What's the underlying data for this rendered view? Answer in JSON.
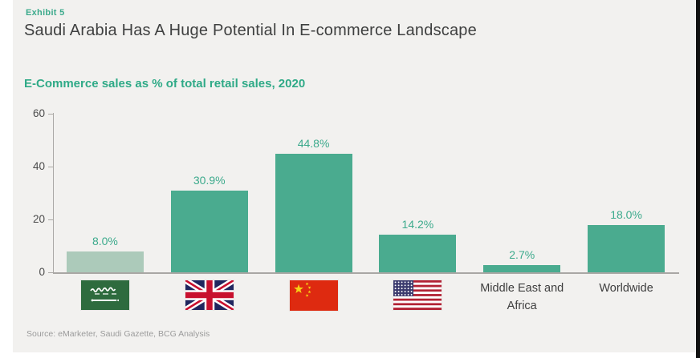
{
  "page": {
    "exhibit_label": "Exhibit 5",
    "title": "Saudi Arabia Has A Huge Potential In E-commerce Landscape",
    "source": "Source: eMarketer, Saudi Gazette, BCG Analysis"
  },
  "chart_data": {
    "type": "bar",
    "title": "E-Commerce sales as % of total retail sales, 2020",
    "categories": [
      "Saudi Arabia",
      "United Kingdom",
      "China",
      "United States",
      "Middle East and Africa",
      "Worldwide"
    ],
    "values": [
      8.0,
      30.9,
      44.8,
      14.2,
      2.7,
      18.0
    ],
    "value_labels": [
      "8.0%",
      "30.9%",
      "44.8%",
      "14.2%",
      "2.7%",
      "18.0%"
    ],
    "category_display": [
      {
        "kind": "flag",
        "icon": "saudi-arabia-flag-icon"
      },
      {
        "kind": "flag",
        "icon": "uk-flag-icon"
      },
      {
        "kind": "flag",
        "icon": "china-flag-icon"
      },
      {
        "kind": "flag",
        "icon": "usa-flag-icon"
      },
      {
        "kind": "text",
        "label": "Middle East and Africa"
      },
      {
        "kind": "text",
        "label": "Worldwide"
      }
    ],
    "ylim": [
      0,
      60
    ],
    "yticks": [
      0,
      20,
      40,
      60
    ],
    "bar_colors": [
      "#accaba",
      "#4aab8f",
      "#4aab8f",
      "#4aab8f",
      "#4aab8f",
      "#4aab8f"
    ],
    "grid": false,
    "legend": "none"
  },
  "colors": {
    "accent_green": "#3caa8c",
    "bar_teal": "#4aab8f",
    "bar_light_green": "#accaba",
    "title_text": "#3f4040",
    "card_background": "#f2f1ef"
  }
}
